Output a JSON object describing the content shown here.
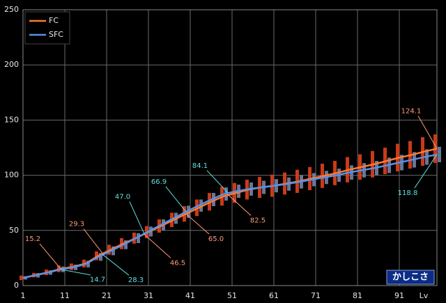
{
  "chart_data": {
    "type": "line-range",
    "x_label": "Lv",
    "badge": "かしこさ",
    "xlim": [
      1,
      100
    ],
    "xticks": [
      1,
      11,
      21,
      31,
      41,
      51,
      61,
      71,
      81,
      91
    ],
    "ylim": [
      0,
      250
    ],
    "yticks": [
      0,
      50,
      100,
      150,
      200,
      250
    ],
    "grid": true,
    "legend": "top-left",
    "x": [
      1,
      4,
      7,
      10,
      13,
      16,
      19,
      22,
      25,
      28,
      31,
      34,
      37,
      40,
      43,
      46,
      49,
      52,
      55,
      58,
      61,
      64,
      67,
      70,
      73,
      76,
      79,
      82,
      85,
      88,
      91,
      94,
      97,
      100
    ],
    "series": [
      {
        "name": "FC",
        "color": "#ff7a30",
        "bar_color": "#e0401a",
        "label_color": "#ff9c7a",
        "values": [
          7,
          9.5,
          12,
          15.2,
          17,
          20,
          27,
          32.5,
          38,
          43,
          48.5,
          54,
          59.5,
          65,
          70.5,
          76,
          81,
          84,
          87,
          89,
          90.5,
          92.5,
          94.5,
          97,
          99.5,
          102,
          105,
          107.5,
          110,
          113,
          116,
          118.5,
          121.5,
          124.1
        ],
        "low": [
          5,
          7.5,
          9.5,
          12.2,
          14,
          16.5,
          23,
          28,
          33,
          38,
          43,
          48,
          53,
          58,
          63,
          68,
          72.5,
          75,
          78,
          79.5,
          80.5,
          82.5,
          84,
          86.5,
          88.5,
          91,
          93.5,
          96,
          98,
          101,
          103.5,
          106,
          108.5,
          111.1
        ],
        "high": [
          9,
          11.5,
          14.5,
          18.2,
          20,
          23.5,
          31,
          37,
          43,
          48,
          54,
          60,
          66,
          72,
          78,
          84,
          89.5,
          93,
          96,
          98.5,
          100.5,
          102.5,
          105,
          107.5,
          110.5,
          113,
          116.5,
          119,
          122,
          125,
          128.5,
          131,
          134.5,
          137.1
        ],
        "annotations": [
          {
            "x": 10,
            "value": 15.2,
            "label": "15.2"
          },
          {
            "x": 20,
            "value": 29.3,
            "label": "29.3"
          },
          {
            "x": 30,
            "value": 46.5,
            "label": "46.5"
          },
          {
            "x": 40,
            "value": 65,
            "label": "65.0"
          },
          {
            "x": 50,
            "value": 82.5,
            "label": "82.5"
          },
          {
            "x": 100,
            "value": 124.1,
            "label": "124.1"
          }
        ]
      },
      {
        "name": "SFC",
        "color": "#5b8fe6",
        "bar_color": "#7482a6",
        "label_color": "#5fe3e3",
        "values": [
          7,
          9.3,
          11.8,
          14.7,
          16.5,
          19.5,
          26,
          31.5,
          37,
          43,
          49,
          55,
          61,
          66.9,
          72.5,
          78,
          83,
          85.5,
          87.5,
          89,
          90.5,
          92,
          94,
          96,
          98,
          100,
          102.5,
          104.5,
          106.5,
          109,
          111.5,
          114,
          116.5,
          118.8
        ],
        "low": [
          5.5,
          7.3,
          9.8,
          12.2,
          14,
          16.5,
          22.5,
          27.5,
          33,
          38.5,
          44.5,
          50,
          56,
          61.4,
          67,
          72,
          77,
          79.5,
          81.5,
          83,
          84.5,
          86,
          88,
          90,
          92,
          94,
          96,
          98,
          100,
          102,
          104.5,
          107,
          109.5,
          111.8
        ],
        "high": [
          8.5,
          11.3,
          13.8,
          17.2,
          19,
          22.5,
          29.5,
          35.5,
          41,
          47.5,
          53.5,
          60,
          66,
          72.4,
          78,
          84,
          89,
          91.5,
          93.5,
          95,
          96.5,
          98,
          100,
          102,
          104,
          106,
          109,
          111,
          113,
          116,
          118.5,
          121,
          123.5,
          125.8
        ],
        "annotations": [
          {
            "x": 10,
            "value": 14.7,
            "label": "14.7"
          },
          {
            "x": 20,
            "value": 28.3,
            "label": "28.3"
          },
          {
            "x": 30,
            "value": 47,
            "label": "47.0"
          },
          {
            "x": 40,
            "value": 66.9,
            "label": "66.9"
          },
          {
            "x": 50,
            "value": 84.1,
            "label": "84.1"
          },
          {
            "x": 100,
            "value": 118.8,
            "label": "118.8"
          }
        ]
      }
    ]
  }
}
